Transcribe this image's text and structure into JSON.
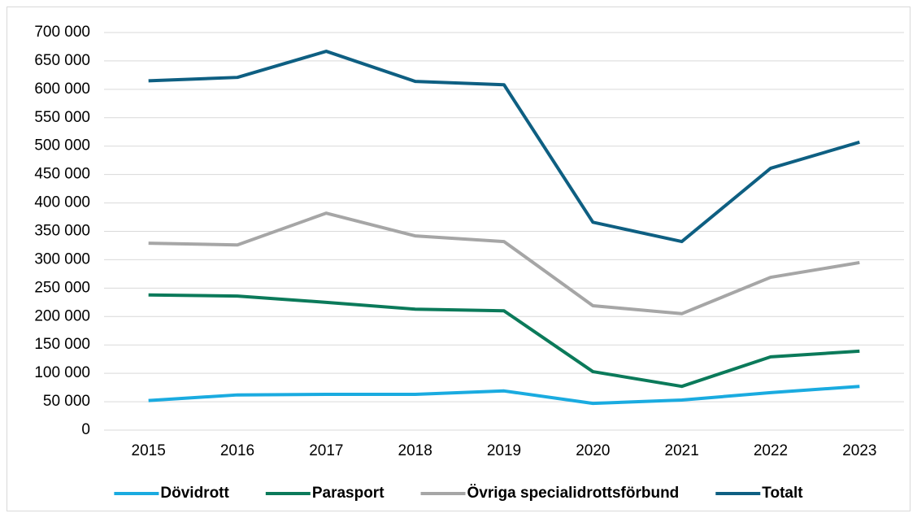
{
  "chart_data": {
    "type": "line",
    "categories": [
      "2015",
      "2016",
      "2017",
      "2018",
      "2019",
      "2020",
      "2021",
      "2022",
      "2023"
    ],
    "series": [
      {
        "name": "Dövidrott",
        "color": "#1aabe0",
        "values": [
          52000,
          62000,
          63000,
          63000,
          69000,
          47000,
          53000,
          66000,
          77000
        ]
      },
      {
        "name": "Parasport",
        "color": "#0b7a5a",
        "values": [
          238000,
          236000,
          225000,
          213000,
          210000,
          103000,
          77000,
          129000,
          139000
        ]
      },
      {
        "name": "Övriga specialidrottsförbund",
        "color": "#a6a6a6",
        "values": [
          329000,
          326000,
          382000,
          342000,
          332000,
          219000,
          205000,
          269000,
          295000
        ]
      },
      {
        "name": "Totalt",
        "color": "#0e5f82",
        "values": [
          615000,
          621000,
          667000,
          614000,
          608000,
          366000,
          332000,
          461000,
          507000
        ]
      }
    ],
    "ylim": [
      0,
      700000
    ],
    "yticks": [
      0,
      {
        "value": 50000,
        "label": "50 000"
      },
      {
        "value": 100000,
        "label": "100 000"
      },
      {
        "value": 150000,
        "label": "150 000"
      },
      {
        "value": 200000,
        "label": "200 000"
      },
      {
        "value": 250000,
        "label": "250 000"
      },
      {
        "value": 300000,
        "label": "300 000"
      },
      {
        "value": 350000,
        "label": "350 000"
      },
      {
        "value": 400000,
        "label": "400 000"
      },
      {
        "value": 450000,
        "label": "450 000"
      },
      {
        "value": 500000,
        "label": "500 000"
      },
      {
        "value": 550000,
        "label": "550 000"
      },
      {
        "value": 600000,
        "label": "600 000"
      },
      {
        "value": 650000,
        "label": "650 000"
      },
      {
        "value": 700000,
        "label": "700 000"
      }
    ],
    "grid": true,
    "legend": "bottom"
  }
}
